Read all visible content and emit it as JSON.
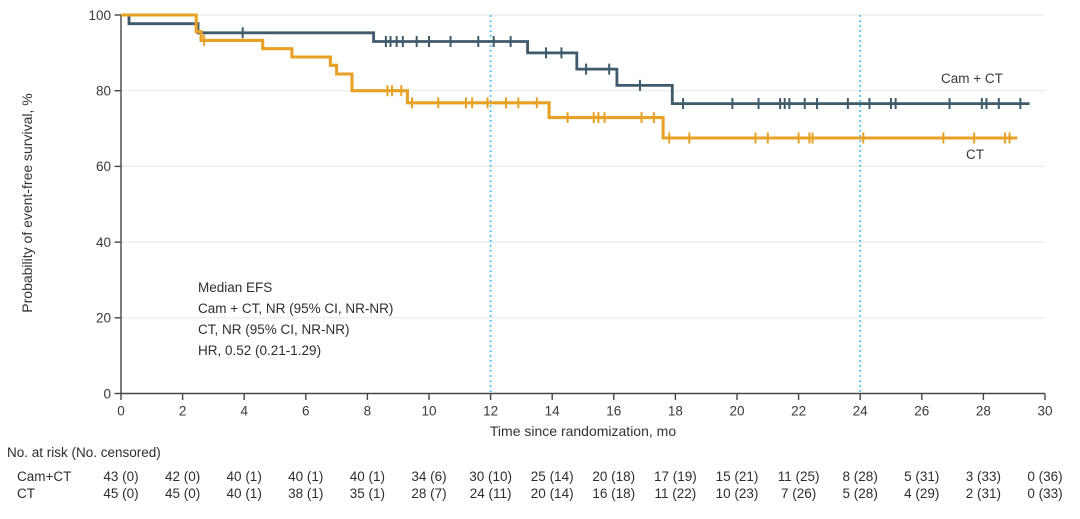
{
  "chart_data": {
    "type": "line",
    "subtype": "kaplan-meier-step",
    "xlabel": "Time since randomization, mo",
    "ylabel": "Probability of event-free survival, %",
    "xlim": [
      0,
      30
    ],
    "ylim": [
      0,
      100
    ],
    "xticks": [
      0,
      2,
      4,
      6,
      8,
      10,
      12,
      14,
      16,
      18,
      20,
      22,
      24,
      26,
      28,
      30
    ],
    "yticks": [
      0,
      20,
      40,
      60,
      80,
      100
    ],
    "grid": "horizontal",
    "grid_color": "#EAEAEA",
    "axis_color": "#474747",
    "tick_label_color": "#3a3a3a",
    "reference_lines_x": [
      12,
      24
    ],
    "reference_line_color": "#55C3EC",
    "legend_position": "end-of-curve",
    "series": [
      {
        "name": "Cam + CT",
        "color": "#3E5A6B",
        "steps": [
          [
            0,
            100
          ],
          [
            0.26,
            100
          ],
          [
            0.26,
            97.7
          ],
          [
            2.5,
            97.7
          ],
          [
            2.5,
            95.3
          ],
          [
            8.2,
            95.3
          ],
          [
            8.2,
            93.0
          ],
          [
            13.2,
            93.0
          ],
          [
            13.2,
            90.0
          ],
          [
            14.8,
            90.0
          ],
          [
            14.8,
            85.7
          ],
          [
            16.1,
            85.7
          ],
          [
            16.1,
            81.4
          ],
          [
            17.9,
            81.4
          ],
          [
            17.9,
            76.6
          ],
          [
            29.5,
            76.6
          ]
        ],
        "censor_times": [
          3.95,
          8.6,
          8.75,
          8.95,
          9.15,
          9.6,
          10.0,
          10.7,
          11.6,
          12.1,
          12.65,
          13.8,
          14.3,
          15.1,
          15.85,
          16.85,
          18.25,
          19.85,
          20.7,
          21.4,
          21.55,
          21.7,
          22.2,
          22.6,
          23.6,
          24.3,
          25.0,
          25.15,
          26.9,
          27.95,
          28.1,
          28.5,
          29.2
        ]
      },
      {
        "name": "CT",
        "color": "#E9A125",
        "steps": [
          [
            0,
            100
          ],
          [
            2.44,
            100
          ],
          [
            2.44,
            95.6
          ],
          [
            2.6,
            95.6
          ],
          [
            2.6,
            93.3
          ],
          [
            4.6,
            93.3
          ],
          [
            4.6,
            91.1
          ],
          [
            5.55,
            91.1
          ],
          [
            5.55,
            88.9
          ],
          [
            6.8,
            88.9
          ],
          [
            6.8,
            86.7
          ],
          [
            7.0,
            86.7
          ],
          [
            7.0,
            84.4
          ],
          [
            7.5,
            84.4
          ],
          [
            7.5,
            80.0
          ],
          [
            9.3,
            80.0
          ],
          [
            9.3,
            76.8
          ],
          [
            13.9,
            76.8
          ],
          [
            13.9,
            72.9
          ],
          [
            17.6,
            72.9
          ],
          [
            17.6,
            67.5
          ],
          [
            29.1,
            67.5
          ]
        ],
        "censor_times": [
          2.7,
          8.65,
          8.8,
          9.1,
          9.45,
          10.3,
          11.2,
          11.4,
          11.9,
          12.5,
          12.9,
          13.5,
          14.5,
          15.35,
          15.5,
          15.7,
          16.9,
          17.3,
          17.8,
          18.45,
          20.6,
          21.0,
          22.0,
          22.35,
          22.45,
          24.1,
          26.7,
          27.7,
          28.7,
          28.85
        ]
      }
    ],
    "annotation_lines": [
      "Median EFS",
      "Cam + CT, NR (95% CI, NR-NR)",
      "CT, NR (95% CI, NR-NR)",
      "HR, 0.52 (0.21-1.29)"
    ]
  },
  "risk_table": {
    "title": "No. at risk (No. censored)",
    "times": [
      0,
      2,
      4,
      6,
      8,
      10,
      12,
      14,
      16,
      18,
      20,
      22,
      24,
      26,
      28,
      30
    ],
    "rows": [
      {
        "label": "Cam+CT",
        "values": [
          "43 (0)",
          "42 (0)",
          "40 (1)",
          "40 (1)",
          "40 (1)",
          "34 (6)",
          "30 (10)",
          "25 (14)",
          "20 (18)",
          "17 (19)",
          "15 (21)",
          "11 (25)",
          "8 (28)",
          "5 (31)",
          "3 (33)",
          "0 (36)"
        ]
      },
      {
        "label": "CT",
        "values": [
          "45 (0)",
          "45 (0)",
          "40 (1)",
          "38 (1)",
          "35 (1)",
          "28 (7)",
          "24 (11)",
          "20 (14)",
          "16 (18)",
          "11 (22)",
          "10 (23)",
          "7 (26)",
          "5 (28)",
          "4 (29)",
          "2 (31)",
          "0 (33)"
        ]
      }
    ]
  }
}
